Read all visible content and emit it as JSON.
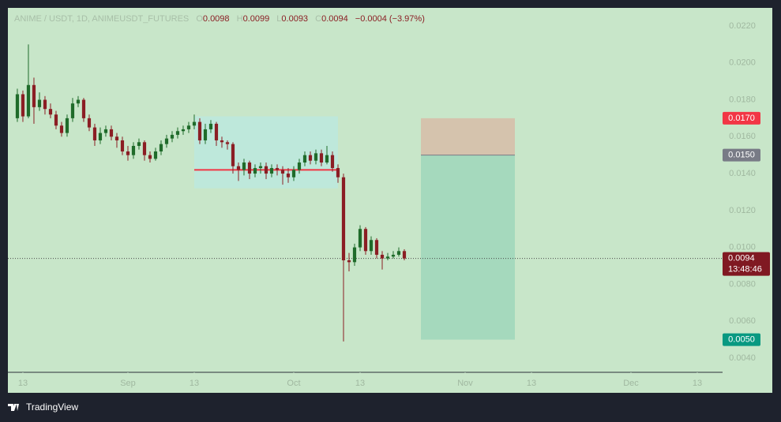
{
  "chart_data": {
    "type": "candlestick",
    "title": "ANIME / USDT, 1D, ANIMEUSDT_FUTURES",
    "ohlc": {
      "names": [
        "O",
        "H",
        "L",
        "C"
      ],
      "values": [
        0.0098,
        0.0099,
        0.0093,
        0.0094
      ],
      "value_labels": [
        "0.0098",
        "0.0099",
        "0.0093",
        "0.0094"
      ]
    },
    "change_label": "−0.0004 (−3.97%)",
    "x": [
      224,
      225,
      226,
      227,
      228,
      229,
      230,
      231,
      232,
      233,
      234,
      235,
      236,
      237,
      238,
      239,
      240,
      241,
      242,
      243,
      244,
      245,
      246,
      247,
      248,
      249,
      250,
      251,
      252,
      253,
      254,
      255,
      256,
      257,
      258,
      259,
      260,
      261,
      262,
      263,
      264,
      265,
      266,
      267,
      268,
      269,
      270,
      271,
      272,
      273,
      274,
      275,
      276,
      277,
      278,
      279,
      280,
      281,
      282,
      283,
      284,
      285,
      286,
      287,
      288,
      289,
      290,
      291,
      292,
      293,
      294
    ],
    "open": [
      0.017,
      0.0183,
      0.0171,
      0.0188,
      0.0176,
      0.018,
      0.0175,
      0.0172,
      0.0166,
      0.0162,
      0.017,
      0.0178,
      0.018,
      0.017,
      0.0165,
      0.0158,
      0.0162,
      0.0164,
      0.016,
      0.0158,
      0.0152,
      0.015,
      0.0155,
      0.0157,
      0.015,
      0.0148,
      0.0152,
      0.0156,
      0.0159,
      0.0161,
      0.0163,
      0.0164,
      0.0166,
      0.0168,
      0.0158,
      0.0164,
      0.0167,
      0.0158,
      0.0157,
      0.0156,
      0.0144,
      0.0142,
      0.0146,
      0.014,
      0.0143,
      0.0144,
      0.014,
      0.0143,
      0.0142,
      0.014,
      0.0138,
      0.0142,
      0.0146,
      0.015,
      0.0147,
      0.0151,
      0.0146,
      0.015,
      0.0143,
      0.0138,
      0.0093,
      0.0092,
      0.01,
      0.011,
      0.0098,
      0.0104,
      0.0096,
      0.0094,
      0.0095,
      0.0096,
      0.0098
    ],
    "high": [
      0.0186,
      0.0185,
      0.021,
      0.0192,
      0.0184,
      0.0182,
      0.0178,
      0.0174,
      0.0168,
      0.0172,
      0.0181,
      0.0182,
      0.0181,
      0.0172,
      0.0167,
      0.0165,
      0.0166,
      0.0166,
      0.0162,
      0.016,
      0.0155,
      0.0157,
      0.0159,
      0.0158,
      0.0152,
      0.0154,
      0.0158,
      0.0161,
      0.0163,
      0.0165,
      0.0166,
      0.0168,
      0.0172,
      0.017,
      0.0167,
      0.0169,
      0.0168,
      0.016,
      0.0158,
      0.0157,
      0.0146,
      0.0148,
      0.0147,
      0.0145,
      0.0146,
      0.0146,
      0.0145,
      0.0145,
      0.0144,
      0.0143,
      0.0144,
      0.0148,
      0.0152,
      0.0152,
      0.0153,
      0.0153,
      0.0155,
      0.0152,
      0.0145,
      0.014,
      0.0097,
      0.0102,
      0.0112,
      0.0111,
      0.0106,
      0.0105,
      0.0098,
      0.0097,
      0.0098,
      0.01,
      0.0099
    ],
    "low": [
      0.0168,
      0.0168,
      0.017,
      0.0167,
      0.0174,
      0.0172,
      0.017,
      0.0164,
      0.016,
      0.016,
      0.0168,
      0.0176,
      0.0168,
      0.0163,
      0.0155,
      0.0156,
      0.016,
      0.0158,
      0.0154,
      0.015,
      0.0147,
      0.0148,
      0.0153,
      0.0147,
      0.0146,
      0.0147,
      0.015,
      0.0154,
      0.0157,
      0.0159,
      0.0161,
      0.0162,
      0.0164,
      0.0156,
      0.0156,
      0.0162,
      0.0155,
      0.0154,
      0.0153,
      0.014,
      0.0136,
      0.0139,
      0.0137,
      0.0138,
      0.014,
      0.0137,
      0.0138,
      0.0139,
      0.0134,
      0.0135,
      0.0136,
      0.014,
      0.0144,
      0.0145,
      0.0145,
      0.0144,
      0.0145,
      0.0141,
      0.0135,
      0.0049,
      0.0087,
      0.009,
      0.0098,
      0.0096,
      0.0096,
      0.0094,
      0.0088,
      0.0093,
      0.0094,
      0.0095,
      0.0093
    ],
    "close": [
      0.0183,
      0.0171,
      0.0188,
      0.0176,
      0.018,
      0.0175,
      0.0172,
      0.0166,
      0.0162,
      0.017,
      0.0178,
      0.018,
      0.017,
      0.0165,
      0.0158,
      0.0162,
      0.0164,
      0.016,
      0.0158,
      0.0152,
      0.015,
      0.0155,
      0.0157,
      0.015,
      0.0148,
      0.0152,
      0.0156,
      0.0159,
      0.0161,
      0.0163,
      0.0164,
      0.0166,
      0.0168,
      0.0158,
      0.0164,
      0.0167,
      0.0158,
      0.0157,
      0.0156,
      0.0144,
      0.0142,
      0.0146,
      0.014,
      0.0143,
      0.0144,
      0.014,
      0.0143,
      0.0142,
      0.014,
      0.0138,
      0.0142,
      0.0146,
      0.015,
      0.0147,
      0.0151,
      0.0146,
      0.015,
      0.0143,
      0.0138,
      0.0093,
      0.0092,
      0.01,
      0.011,
      0.0098,
      0.0104,
      0.0096,
      0.0094,
      0.0095,
      0.0096,
      0.0098,
      0.0094
    ],
    "up_color": "#1f6b2a",
    "down_color": "#8b1e24",
    "xlim": [
      222.29,
      351.57
    ],
    "xticks": [
      {
        "value": 225,
        "label": "13"
      },
      {
        "value": 244,
        "label": "Sep"
      },
      {
        "value": 256,
        "label": "13"
      },
      {
        "value": 274,
        "label": "Oct"
      },
      {
        "value": 286,
        "label": "13"
      },
      {
        "value": 305,
        "label": "Nov"
      },
      {
        "value": 317,
        "label": "13"
      },
      {
        "value": 335,
        "label": "Dec"
      },
      {
        "value": 347,
        "label": "13"
      }
    ],
    "ylim": [
      0.00323,
      0.02298
    ],
    "yticks": [
      {
        "value": 0.004,
        "label": "0.0040"
      },
      {
        "value": 0.006,
        "label": "0.0060"
      },
      {
        "value": 0.008,
        "label": "0.0080"
      },
      {
        "value": 0.01,
        "label": "0.0100"
      },
      {
        "value": 0.012,
        "label": "0.0120"
      },
      {
        "value": 0.014,
        "label": "0.0140"
      },
      {
        "value": 0.016,
        "label": "0.0160"
      },
      {
        "value": 0.018,
        "label": "0.0180"
      },
      {
        "value": 0.02,
        "label": "0.0200"
      },
      {
        "value": 0.022,
        "label": "0.0220"
      }
    ],
    "price_line": {
      "value": 0.0094,
      "label": "0.0094",
      "countdown": "13:48:46"
    },
    "position": {
      "x": [
        297,
        314
      ],
      "stop": {
        "value": 0.017,
        "label": "0.0170"
      },
      "entry": {
        "value": 0.015,
        "label": "0.0150"
      },
      "target": {
        "value": 0.005,
        "label": "0.0050"
      }
    },
    "volume_profile": {
      "x": [
        256,
        282
      ],
      "range": [
        0.0132,
        0.0171
      ],
      "poc": 0.0142
    }
  },
  "footer": {
    "brand": "TradingView"
  }
}
